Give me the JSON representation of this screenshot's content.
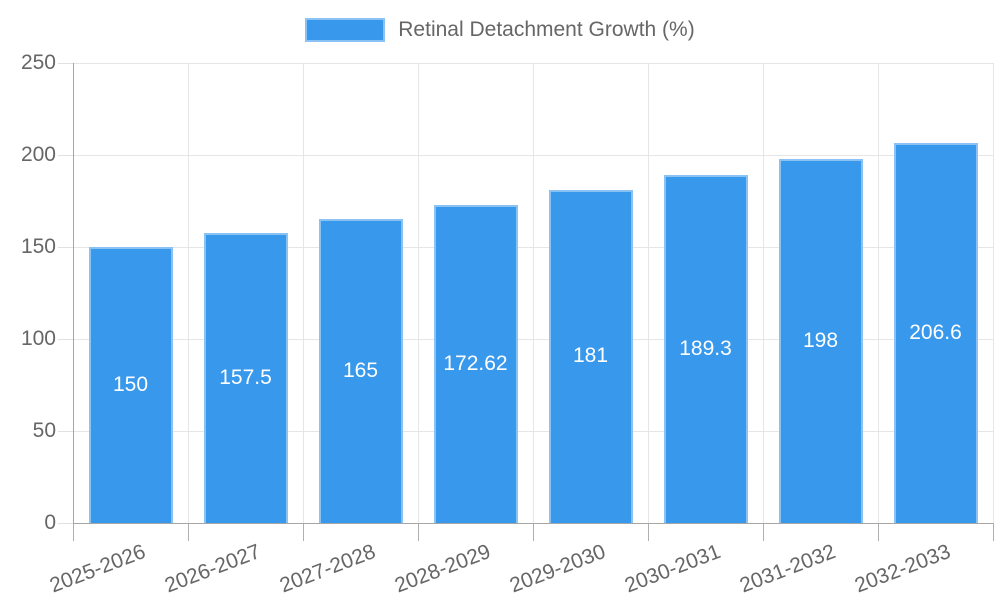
{
  "chart_data": {
    "type": "bar",
    "title": "Retinal Detachment Growth (%)",
    "categories": [
      "2025-2026",
      "2026-2027",
      "2027-2028",
      "2028-2029",
      "2029-2030",
      "2030-2031",
      "2031-2032",
      "2032-2033"
    ],
    "series": [
      {
        "name": "Retinal Detachment Growth (%)",
        "values": [
          150,
          157.5,
          165,
          172.62,
          181,
          189.3,
          198,
          206.6
        ],
        "value_labels": [
          "150",
          "157.5",
          "165",
          "172.62",
          "181",
          "189.3",
          "198",
          "206.6"
        ]
      }
    ],
    "xlabel": "",
    "ylabel": "",
    "ylim": [
      0,
      250
    ],
    "yticks": [
      0,
      50,
      100,
      150,
      200,
      250
    ],
    "ytick_labels": [
      "0",
      "50",
      "100",
      "150",
      "200",
      "250"
    ],
    "grid": true,
    "legend_position": "top",
    "value_labels_inside_bars": true,
    "colors": {
      "bar": "#3898ec",
      "bar_border": "#8ac3f3",
      "bar_label": "#ffffff",
      "axis_text": "#666666",
      "grid_line": "#e6e6e6",
      "axis_line": "#a6a6a6",
      "tick_mark": "#b0b0b0",
      "y_tick_mark": "#e0e0e0",
      "background": "#ffffff"
    }
  }
}
